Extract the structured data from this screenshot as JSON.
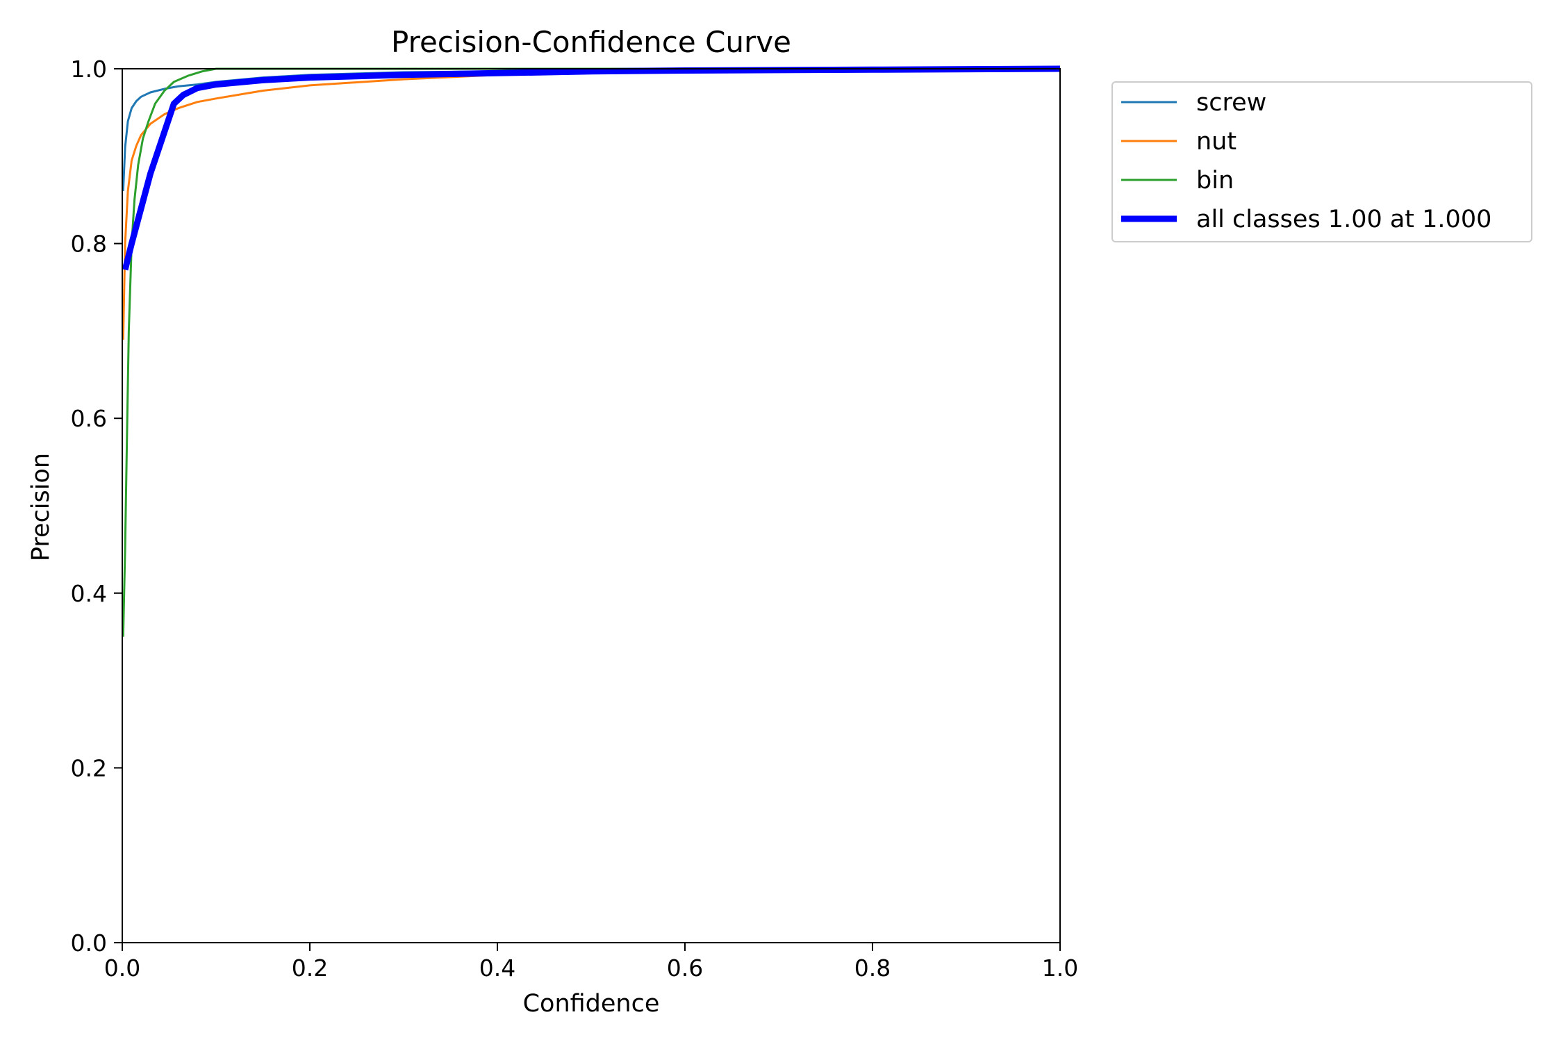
{
  "chart_data": {
    "type": "line",
    "title": "Precision-Confidence Curve",
    "xlabel": "Confidence",
    "ylabel": "Precision",
    "xlim": [
      0,
      1
    ],
    "ylim": [
      0,
      1
    ],
    "x_ticks": [
      "0.0",
      "0.2",
      "0.4",
      "0.6",
      "0.8",
      "1.0"
    ],
    "y_ticks": [
      "0.0",
      "0.2",
      "0.4",
      "0.6",
      "0.8",
      "1.0"
    ],
    "grid": false,
    "legend_position": "outside-top-right",
    "series": [
      {
        "name": "screw",
        "color": "#1f77b4",
        "points": [
          [
            0.001,
            0.86
          ],
          [
            0.003,
            0.91
          ],
          [
            0.006,
            0.94
          ],
          [
            0.01,
            0.955
          ],
          [
            0.015,
            0.963
          ],
          [
            0.02,
            0.968
          ],
          [
            0.03,
            0.973
          ],
          [
            0.045,
            0.977
          ],
          [
            0.06,
            0.98
          ],
          [
            0.08,
            0.982
          ],
          [
            0.1,
            0.985
          ],
          [
            0.15,
            0.99
          ],
          [
            0.2,
            0.993
          ],
          [
            0.3,
            0.996
          ],
          [
            0.5,
            0.998
          ],
          [
            0.7,
            0.999
          ],
          [
            1.0,
            1.0
          ]
        ]
      },
      {
        "name": "nut",
        "color": "#ff7f0e",
        "points": [
          [
            0.001,
            0.69
          ],
          [
            0.003,
            0.8
          ],
          [
            0.006,
            0.86
          ],
          [
            0.01,
            0.895
          ],
          [
            0.015,
            0.912
          ],
          [
            0.02,
            0.924
          ],
          [
            0.03,
            0.937
          ],
          [
            0.045,
            0.948
          ],
          [
            0.06,
            0.955
          ],
          [
            0.08,
            0.962
          ],
          [
            0.1,
            0.966
          ],
          [
            0.15,
            0.975
          ],
          [
            0.2,
            0.981
          ],
          [
            0.3,
            0.988
          ],
          [
            0.4,
            0.993
          ],
          [
            0.5,
            0.996
          ],
          [
            0.7,
            0.998
          ],
          [
            1.0,
            1.0
          ]
        ]
      },
      {
        "name": "bin",
        "color": "#2ca02c",
        "points": [
          [
            0.001,
            0.35
          ],
          [
            0.003,
            0.45
          ],
          [
            0.005,
            0.58
          ],
          [
            0.007,
            0.7
          ],
          [
            0.01,
            0.8
          ],
          [
            0.013,
            0.85
          ],
          [
            0.017,
            0.89
          ],
          [
            0.022,
            0.92
          ],
          [
            0.028,
            0.94
          ],
          [
            0.035,
            0.96
          ],
          [
            0.045,
            0.975
          ],
          [
            0.055,
            0.985
          ],
          [
            0.07,
            0.992
          ],
          [
            0.085,
            0.997
          ],
          [
            0.1,
            1.0
          ],
          [
            1.0,
            1.0
          ]
        ]
      },
      {
        "name": "all classes 1.00 at 1.000",
        "color": "#0000ff",
        "bold": true,
        "points": [
          [
            0.003,
            0.77
          ],
          [
            0.01,
            0.8
          ],
          [
            0.03,
            0.88
          ],
          [
            0.055,
            0.96
          ],
          [
            0.065,
            0.97
          ],
          [
            0.08,
            0.978
          ],
          [
            0.1,
            0.982
          ],
          [
            0.15,
            0.987
          ],
          [
            0.2,
            0.99
          ],
          [
            0.3,
            0.993
          ],
          [
            0.4,
            0.995
          ],
          [
            0.5,
            0.997
          ],
          [
            0.6,
            0.998
          ],
          [
            0.8,
            0.999
          ],
          [
            1.0,
            1.0
          ]
        ]
      }
    ]
  }
}
